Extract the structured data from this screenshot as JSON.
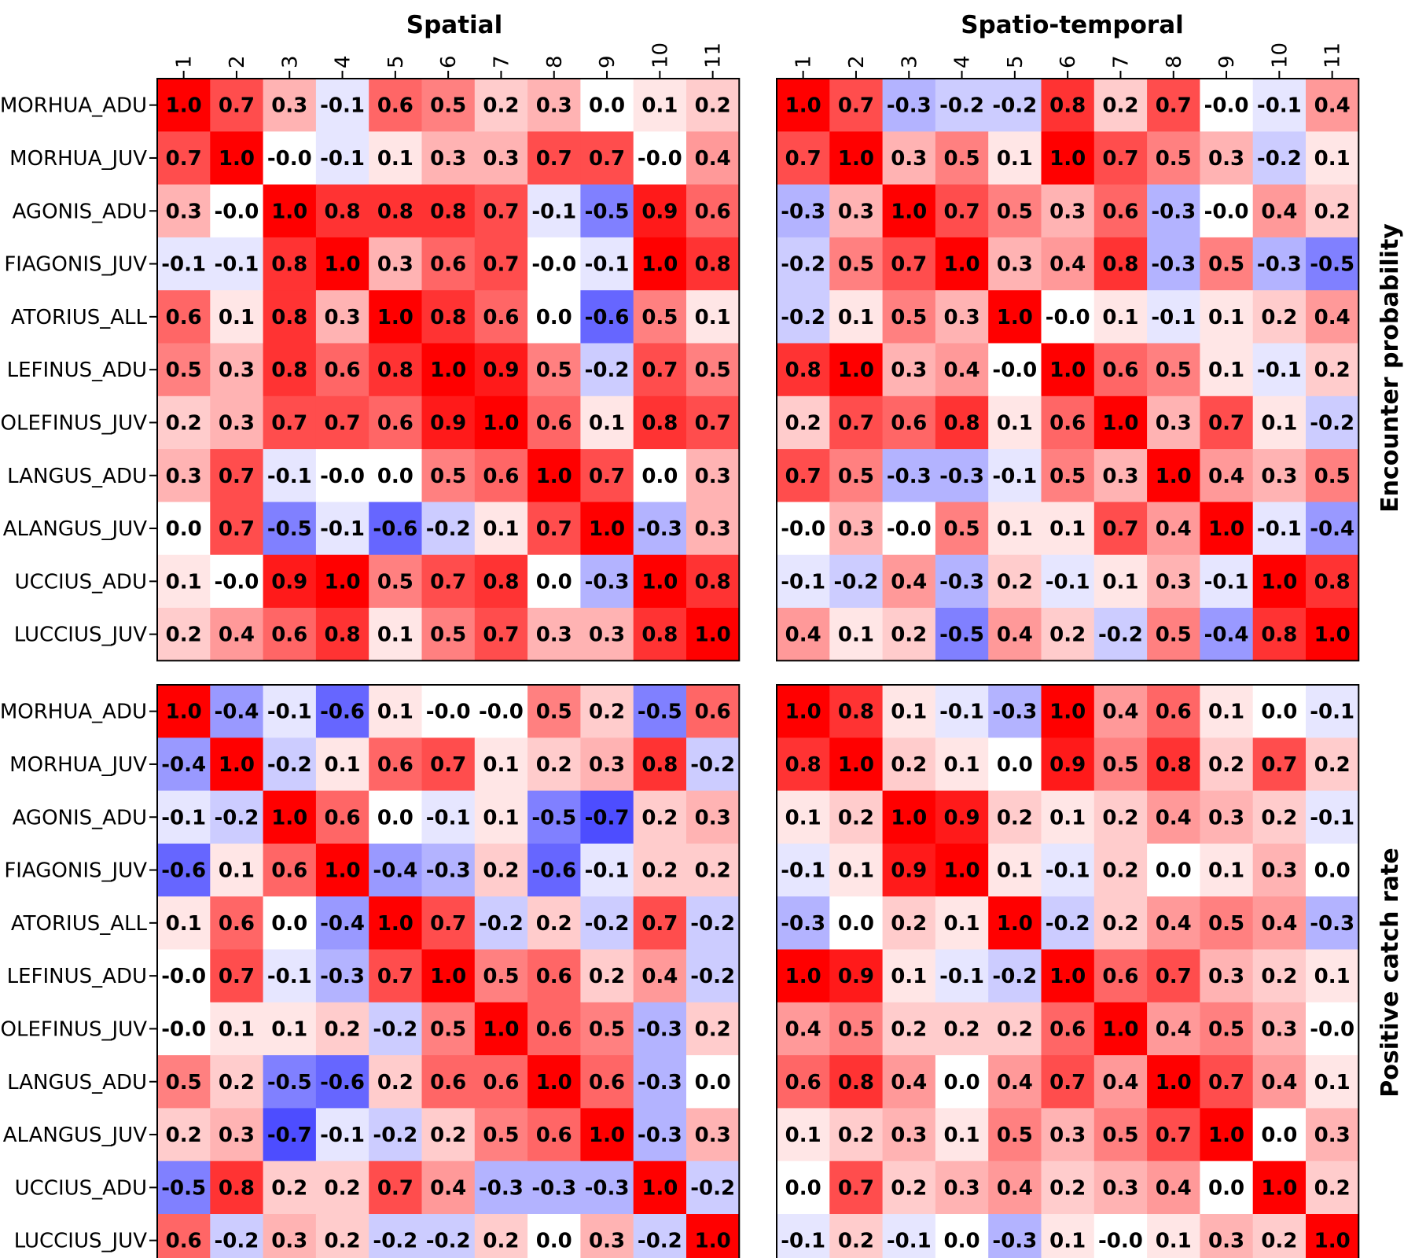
{
  "chart_data": {
    "type": "heatmap",
    "col_titles": [
      "Spatial",
      "Spatio-temporal"
    ],
    "row_titles": [
      "Encounter probability",
      "Positive catch rate"
    ],
    "row_labels": [
      "MORHUA_ADU",
      "MORHUA_JUV",
      "AGONIS_ADU",
      "FIAGONIS_JUV",
      "ATORIUS_ALL",
      "LEFINUS_ADU",
      "OLEFINUS_JUV",
      "LANGUS_ADU",
      "ALANGUS_JUV",
      "UCCIUS_ADU",
      "LUCCIUS_JUV"
    ],
    "col_labels": [
      "1",
      "2",
      "3",
      "4",
      "5",
      "6",
      "7",
      "8",
      "9",
      "10",
      "11"
    ],
    "color_scale": {
      "min": -1,
      "max": 1,
      "neg": "#0000ff",
      "mid": "#ffffff",
      "pos": "#ff0000"
    },
    "panels": [
      {
        "row": "Encounter probability",
        "column": "Spatial",
        "values": [
          [
            "1.0",
            "0.7",
            "0.3",
            "-0.1",
            "0.6",
            "0.5",
            "0.2",
            "0.3",
            "0.0",
            "0.1",
            "0.2"
          ],
          [
            "0.7",
            "1.0",
            "-0.0",
            "-0.1",
            "0.1",
            "0.3",
            "0.3",
            "0.7",
            "0.7",
            "-0.0",
            "0.4"
          ],
          [
            "0.3",
            "-0.0",
            "1.0",
            "0.8",
            "0.8",
            "0.8",
            "0.7",
            "-0.1",
            "-0.5",
            "0.9",
            "0.6"
          ],
          [
            "-0.1",
            "-0.1",
            "0.8",
            "1.0",
            "0.3",
            "0.6",
            "0.7",
            "-0.0",
            "-0.1",
            "1.0",
            "0.8"
          ],
          [
            "0.6",
            "0.1",
            "0.8",
            "0.3",
            "1.0",
            "0.8",
            "0.6",
            "0.0",
            "-0.6",
            "0.5",
            "0.1"
          ],
          [
            "0.5",
            "0.3",
            "0.8",
            "0.6",
            "0.8",
            "1.0",
            "0.9",
            "0.5",
            "-0.2",
            "0.7",
            "0.5"
          ],
          [
            "0.2",
            "0.3",
            "0.7",
            "0.7",
            "0.6",
            "0.9",
            "1.0",
            "0.6",
            "0.1",
            "0.8",
            "0.7"
          ],
          [
            "0.3",
            "0.7",
            "-0.1",
            "-0.0",
            "0.0",
            "0.5",
            "0.6",
            "1.0",
            "0.7",
            "0.0",
            "0.3"
          ],
          [
            "0.0",
            "0.7",
            "-0.5",
            "-0.1",
            "-0.6",
            "-0.2",
            "0.1",
            "0.7",
            "1.0",
            "-0.3",
            "0.3"
          ],
          [
            "0.1",
            "-0.0",
            "0.9",
            "1.0",
            "0.5",
            "0.7",
            "0.8",
            "0.0",
            "-0.3",
            "1.0",
            "0.8"
          ],
          [
            "0.2",
            "0.4",
            "0.6",
            "0.8",
            "0.1",
            "0.5",
            "0.7",
            "0.3",
            "0.3",
            "0.8",
            "1.0"
          ]
        ]
      },
      {
        "row": "Encounter probability",
        "column": "Spatio-temporal",
        "values": [
          [
            "1.0",
            "0.7",
            "-0.3",
            "-0.2",
            "-0.2",
            "0.8",
            "0.2",
            "0.7",
            "-0.0",
            "-0.1",
            "0.4"
          ],
          [
            "0.7",
            "1.0",
            "0.3",
            "0.5",
            "0.1",
            "1.0",
            "0.7",
            "0.5",
            "0.3",
            "-0.2",
            "0.1"
          ],
          [
            "-0.3",
            "0.3",
            "1.0",
            "0.7",
            "0.5",
            "0.3",
            "0.6",
            "-0.3",
            "-0.0",
            "0.4",
            "0.2"
          ],
          [
            "-0.2",
            "0.5",
            "0.7",
            "1.0",
            "0.3",
            "0.4",
            "0.8",
            "-0.3",
            "0.5",
            "-0.3",
            "-0.5"
          ],
          [
            "-0.2",
            "0.1",
            "0.5",
            "0.3",
            "1.0",
            "-0.0",
            "0.1",
            "-0.1",
            "0.1",
            "0.2",
            "0.4"
          ],
          [
            "0.8",
            "1.0",
            "0.3",
            "0.4",
            "-0.0",
            "1.0",
            "0.6",
            "0.5",
            "0.1",
            "-0.1",
            "0.2"
          ],
          [
            "0.2",
            "0.7",
            "0.6",
            "0.8",
            "0.1",
            "0.6",
            "1.0",
            "0.3",
            "0.7",
            "0.1",
            "-0.2"
          ],
          [
            "0.7",
            "0.5",
            "-0.3",
            "-0.3",
            "-0.1",
            "0.5",
            "0.3",
            "1.0",
            "0.4",
            "0.3",
            "0.5"
          ],
          [
            "-0.0",
            "0.3",
            "-0.0",
            "0.5",
            "0.1",
            "0.1",
            "0.7",
            "0.4",
            "1.0",
            "-0.1",
            "-0.4"
          ],
          [
            "-0.1",
            "-0.2",
            "0.4",
            "-0.3",
            "0.2",
            "-0.1",
            "0.1",
            "0.3",
            "-0.1",
            "1.0",
            "0.8"
          ],
          [
            "0.4",
            "0.1",
            "0.2",
            "-0.5",
            "0.4",
            "0.2",
            "-0.2",
            "0.5",
            "-0.4",
            "0.8",
            "1.0"
          ]
        ]
      },
      {
        "row": "Positive catch rate",
        "column": "Spatial",
        "values": [
          [
            "1.0",
            "-0.4",
            "-0.1",
            "-0.6",
            "0.1",
            "-0.0",
            "-0.0",
            "0.5",
            "0.2",
            "-0.5",
            "0.6"
          ],
          [
            "-0.4",
            "1.0",
            "-0.2",
            "0.1",
            "0.6",
            "0.7",
            "0.1",
            "0.2",
            "0.3",
            "0.8",
            "-0.2"
          ],
          [
            "-0.1",
            "-0.2",
            "1.0",
            "0.6",
            "0.0",
            "-0.1",
            "0.1",
            "-0.5",
            "-0.7",
            "0.2",
            "0.3"
          ],
          [
            "-0.6",
            "0.1",
            "0.6",
            "1.0",
            "-0.4",
            "-0.3",
            "0.2",
            "-0.6",
            "-0.1",
            "0.2",
            "0.2"
          ],
          [
            "0.1",
            "0.6",
            "0.0",
            "-0.4",
            "1.0",
            "0.7",
            "-0.2",
            "0.2",
            "-0.2",
            "0.7",
            "-0.2"
          ],
          [
            "-0.0",
            "0.7",
            "-0.1",
            "-0.3",
            "0.7",
            "1.0",
            "0.5",
            "0.6",
            "0.2",
            "0.4",
            "-0.2"
          ],
          [
            "-0.0",
            "0.1",
            "0.1",
            "0.2",
            "-0.2",
            "0.5",
            "1.0",
            "0.6",
            "0.5",
            "-0.3",
            "0.2"
          ],
          [
            "0.5",
            "0.2",
            "-0.5",
            "-0.6",
            "0.2",
            "0.6",
            "0.6",
            "1.0",
            "0.6",
            "-0.3",
            "0.0"
          ],
          [
            "0.2",
            "0.3",
            "-0.7",
            "-0.1",
            "-0.2",
            "0.2",
            "0.5",
            "0.6",
            "1.0",
            "-0.3",
            "0.3"
          ],
          [
            "-0.5",
            "0.8",
            "0.2",
            "0.2",
            "0.7",
            "0.4",
            "-0.3",
            "-0.3",
            "-0.3",
            "1.0",
            "-0.2"
          ],
          [
            "0.6",
            "-0.2",
            "0.3",
            "0.2",
            "-0.2",
            "-0.2",
            "0.2",
            "0.0",
            "0.3",
            "-0.2",
            "1.0"
          ]
        ]
      },
      {
        "row": "Positive catch rate",
        "column": "Spatio-temporal",
        "values": [
          [
            "1.0",
            "0.8",
            "0.1",
            "-0.1",
            "-0.3",
            "1.0",
            "0.4",
            "0.6",
            "0.1",
            "0.0",
            "-0.1"
          ],
          [
            "0.8",
            "1.0",
            "0.2",
            "0.1",
            "0.0",
            "0.9",
            "0.5",
            "0.8",
            "0.2",
            "0.7",
            "0.2"
          ],
          [
            "0.1",
            "0.2",
            "1.0",
            "0.9",
            "0.2",
            "0.1",
            "0.2",
            "0.4",
            "0.3",
            "0.2",
            "-0.1"
          ],
          [
            "-0.1",
            "0.1",
            "0.9",
            "1.0",
            "0.1",
            "-0.1",
            "0.2",
            "0.0",
            "0.1",
            "0.3",
            "0.0"
          ],
          [
            "-0.3",
            "0.0",
            "0.2",
            "0.1",
            "1.0",
            "-0.2",
            "0.2",
            "0.4",
            "0.5",
            "0.4",
            "-0.3"
          ],
          [
            "1.0",
            "0.9",
            "0.1",
            "-0.1",
            "-0.2",
            "1.0",
            "0.6",
            "0.7",
            "0.3",
            "0.2",
            "0.1"
          ],
          [
            "0.4",
            "0.5",
            "0.2",
            "0.2",
            "0.2",
            "0.6",
            "1.0",
            "0.4",
            "0.5",
            "0.3",
            "-0.0"
          ],
          [
            "0.6",
            "0.8",
            "0.4",
            "0.0",
            "0.4",
            "0.7",
            "0.4",
            "1.0",
            "0.7",
            "0.4",
            "0.1"
          ],
          [
            "0.1",
            "0.2",
            "0.3",
            "0.1",
            "0.5",
            "0.3",
            "0.5",
            "0.7",
            "1.0",
            "0.0",
            "0.3"
          ],
          [
            "0.0",
            "0.7",
            "0.2",
            "0.3",
            "0.4",
            "0.2",
            "0.3",
            "0.4",
            "0.0",
            "1.0",
            "0.2"
          ],
          [
            "-0.1",
            "0.2",
            "-0.1",
            "0.0",
            "-0.3",
            "0.1",
            "-0.0",
            "0.1",
            "0.3",
            "0.2",
            "1.0"
          ]
        ]
      }
    ]
  }
}
